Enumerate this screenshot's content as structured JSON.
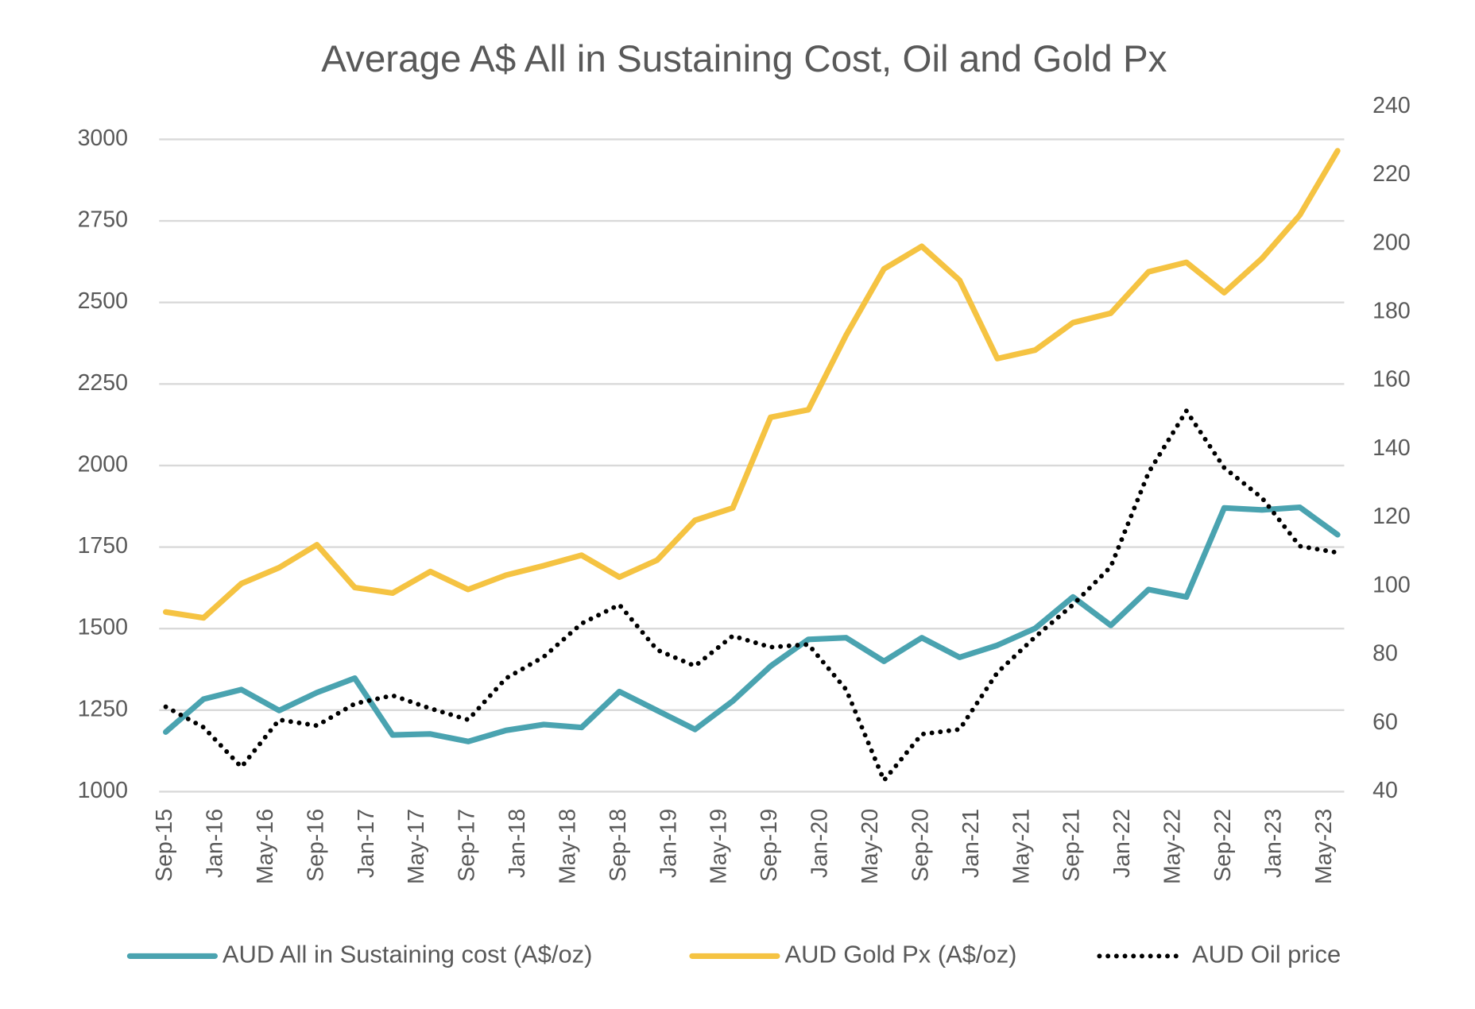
{
  "chart_data": {
    "type": "line",
    "title": "Average A$ All in Sustaining Cost, Oil and Gold Px",
    "x": [
      "Sep-15",
      "Dec-15",
      "Mar-16",
      "Jun-16",
      "Sep-16",
      "Dec-16",
      "Mar-17",
      "Jun-17",
      "Sep-17",
      "Dec-17",
      "Mar-18",
      "Jun-18",
      "Sep-18",
      "Dec-18",
      "Mar-19",
      "Jun-19",
      "Sep-19",
      "Dec-19",
      "Mar-20",
      "Jun-20",
      "Sep-20",
      "Dec-20",
      "Mar-21",
      "Jun-21",
      "Sep-21",
      "Dec-21",
      "Mar-22",
      "Jun-22",
      "Sep-22",
      "Dec-22",
      "Mar-23",
      "Jun-23"
    ],
    "xlim": [
      "Sep-15",
      "Jun-23"
    ],
    "xticks": [
      "Sep-15",
      "Jan-16",
      "May-16",
      "Sep-16",
      "Jan-17",
      "May-17",
      "Sep-17",
      "Jan-18",
      "May-18",
      "Sep-18",
      "Jan-19",
      "May-19",
      "Sep-19",
      "Jan-20",
      "May-20",
      "Sep-20",
      "Jan-21",
      "May-21",
      "Sep-21",
      "Jan-22",
      "May-22",
      "Sep-22",
      "Jan-23",
      "May-23"
    ],
    "ylim": [
      1000,
      3100
    ],
    "yticks": [
      1000,
      1250,
      1500,
      1750,
      2000,
      2250,
      2500,
      2750,
      3000
    ],
    "y2lim": [
      40,
      240
    ],
    "y2ticks": [
      40,
      60,
      80,
      100,
      120,
      140,
      160,
      180,
      200,
      220,
      240
    ],
    "grid": true,
    "legend": "bottom",
    "series": [
      {
        "name": "AUD All in Sustaining cost (A$/oz)",
        "color": "#4aa3b0",
        "style": "solid",
        "values": [
          1183,
          1284,
          1313,
          1249,
          1304,
          1348,
          1174,
          1177,
          1154,
          1188,
          1206,
          1197,
          1307,
          1249,
          1191,
          1278,
          1385,
          1467,
          1472,
          1400,
          1472,
          1412,
          1449,
          1501,
          1597,
          1510,
          1620,
          1597,
          1870,
          1864,
          1872,
          1788
        ]
      },
      {
        "name": "AUD Gold Px (A$/oz)",
        "color": "#f5c342",
        "style": "solid",
        "values": [
          1551,
          1533,
          1638,
          1687,
          1757,
          1626,
          1609,
          1675,
          1620,
          1664,
          1693,
          1725,
          1658,
          1710,
          1832,
          1870,
          2148,
          2171,
          2400,
          2603,
          2672,
          2568,
          2328,
          2354,
          2438,
          2467,
          2594,
          2623,
          2530,
          2635,
          2768,
          2965
        ]
      },
      {
        "name": "AUD Oil price",
        "color": "#000000",
        "style": "dotted",
        "axis": "y2",
        "values": [
          64.8,
          58.8,
          47.2,
          61,
          59.3,
          65.7,
          68.1,
          64.3,
          61,
          73.1,
          79.4,
          89.1,
          94.6,
          81.4,
          76.7,
          85.5,
          82.2,
          83,
          69.8,
          43.3,
          56.8,
          58.2,
          74.8,
          85.2,
          94.6,
          105.7,
          133.2,
          151.2,
          134.6,
          125.8,
          111.7,
          109.8
        ]
      }
    ]
  }
}
